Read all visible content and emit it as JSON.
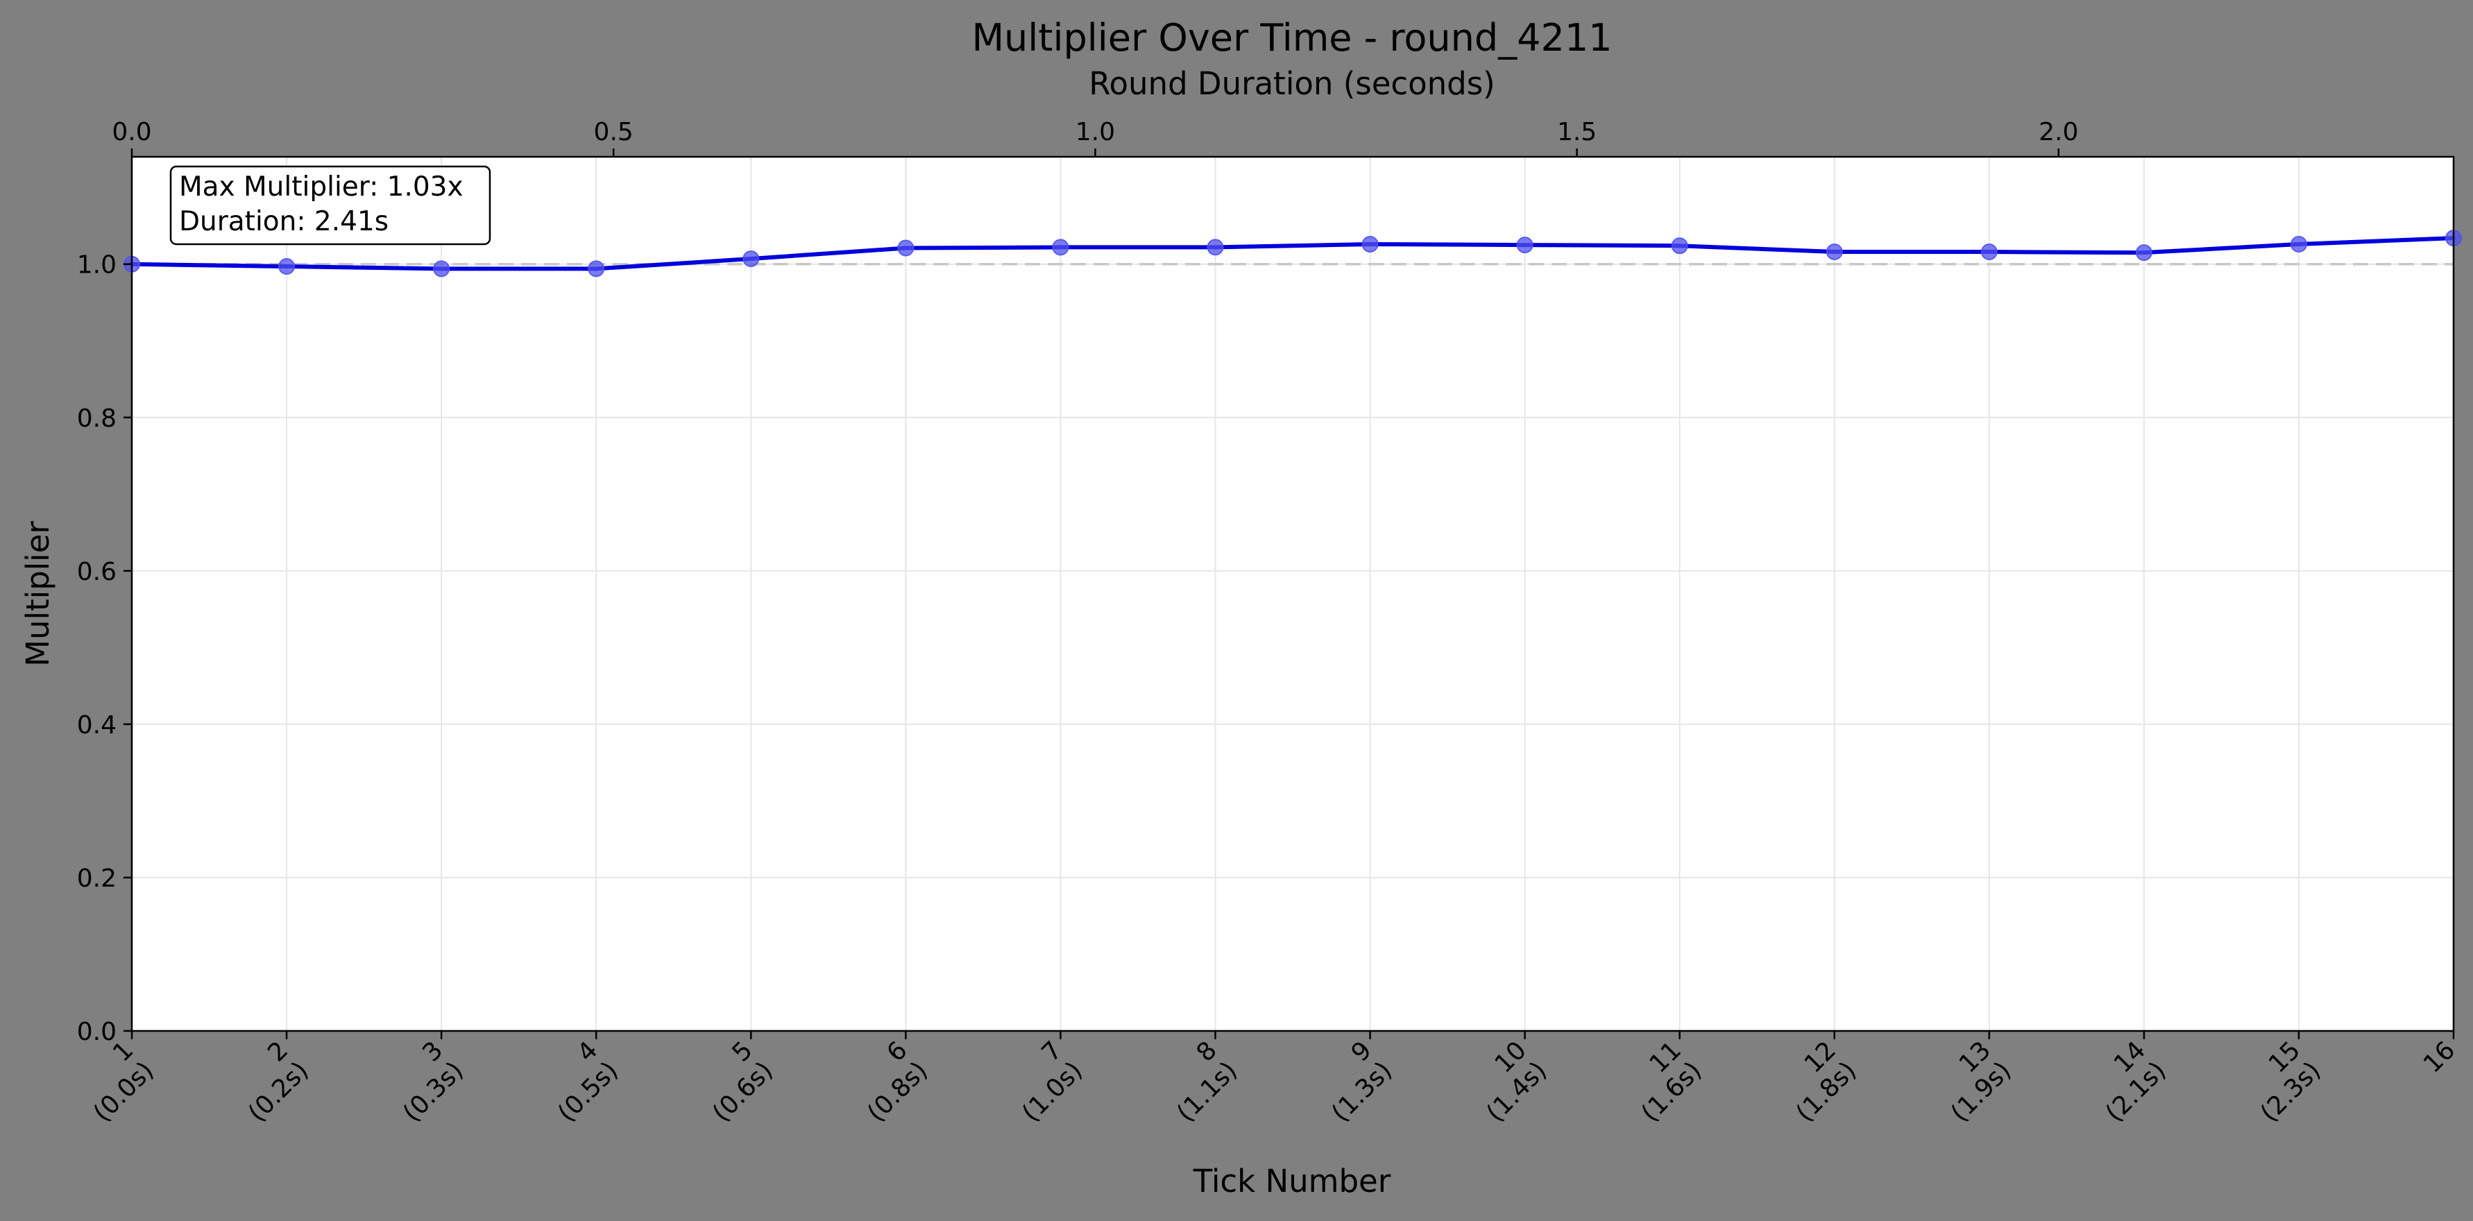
{
  "chart_data": {
    "type": "line",
    "title": "Multiplier Over Time - round_4211",
    "xlabel": "Tick Number",
    "ylabel": "Multiplier",
    "x2label": "Round Duration (seconds)",
    "x": [
      1,
      2,
      3,
      4,
      5,
      6,
      7,
      8,
      9,
      10,
      11,
      12,
      13,
      14,
      15,
      16
    ],
    "x_tick_labels": [
      [
        "1",
        "(0.0s)"
      ],
      [
        "2",
        "(0.2s)"
      ],
      [
        "3",
        "(0.3s)"
      ],
      [
        "4",
        "(0.5s)"
      ],
      [
        "5",
        "(0.6s)"
      ],
      [
        "6",
        "(0.8s)"
      ],
      [
        "7",
        "(1.0s)"
      ],
      [
        "8",
        "(1.1s)"
      ],
      [
        "9",
        "(1.3s)"
      ],
      [
        "10",
        "(1.4s)"
      ],
      [
        "11",
        "(1.6s)"
      ],
      [
        "12",
        "(1.8s)"
      ],
      [
        "13",
        "(1.9s)"
      ],
      [
        "14",
        "(2.1s)"
      ],
      [
        "15",
        "(2.3s)"
      ],
      [
        "16",
        ""
      ]
    ],
    "series": [
      {
        "values": [
          1.0,
          0.997,
          0.994,
          0.994,
          1.007,
          1.021,
          1.022,
          1.022,
          1.026,
          1.025,
          1.024,
          1.016,
          1.016,
          1.015,
          1.026,
          1.034
        ],
        "color": "#0000dd",
        "marker_color": "#5050ee"
      }
    ],
    "reference_line": {
      "y": 1.0,
      "style": "dashed",
      "color": "#c8c8c8"
    },
    "xlim": [
      1,
      16
    ],
    "ylim": [
      0.0,
      1.14
    ],
    "y_ticks": [
      "0.0",
      "0.2",
      "0.4",
      "0.6",
      "0.8",
      "1.0"
    ],
    "x2_seconds": [
      0,
      2.41
    ],
    "x2_ticks": [
      "0.0",
      "0.5",
      "1.0",
      "1.5",
      "2.0"
    ],
    "annotation": {
      "line1": "Max Multiplier: 1.03x",
      "line2": "Duration: 2.41s",
      "placement": "top-left"
    },
    "grid": true,
    "background": "#808080",
    "plot_background": "#ffffff"
  }
}
